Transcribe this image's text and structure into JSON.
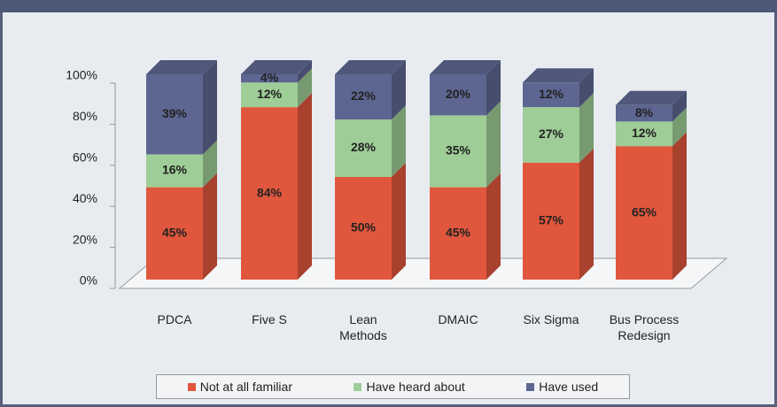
{
  "chart_data": {
    "type": "bar3d_stacked",
    "categories": [
      "PDCA",
      "Five S",
      "Lean Methods",
      "DMAIC",
      "Six Sigma",
      "Bus Process Redesign"
    ],
    "series": [
      {
        "name": "Not at all familiar",
        "color": "#e0573d",
        "values": [
          45,
          84,
          50,
          45,
          57,
          65
        ],
        "value_labels": [
          "45%",
          "84%",
          "50%",
          "45%",
          "57%",
          "65%"
        ]
      },
      {
        "name": "Have heard about",
        "color": "#9fcd97",
        "values": [
          16,
          12,
          28,
          35,
          27,
          12
        ],
        "value_labels": [
          "16%",
          "12%",
          "28%",
          "35%",
          "27%",
          "12%"
        ]
      },
      {
        "name": "Have used",
        "color": "#5d6691",
        "values": [
          39,
          4,
          22,
          20,
          12,
          8
        ],
        "value_labels": [
          "39%",
          "4%",
          "22%",
          "20%",
          "12%",
          "8%"
        ]
      }
    ],
    "ylim": [
      0,
      100
    ],
    "yticks": [
      {
        "value": 0,
        "label": "0%"
      },
      {
        "value": 20,
        "label": "20%"
      },
      {
        "value": 40,
        "label": "40%"
      },
      {
        "value": 60,
        "label": "60%"
      },
      {
        "value": 80,
        "label": "80%"
      },
      {
        "value": 100,
        "label": "100%"
      }
    ],
    "legend": "bottom"
  }
}
